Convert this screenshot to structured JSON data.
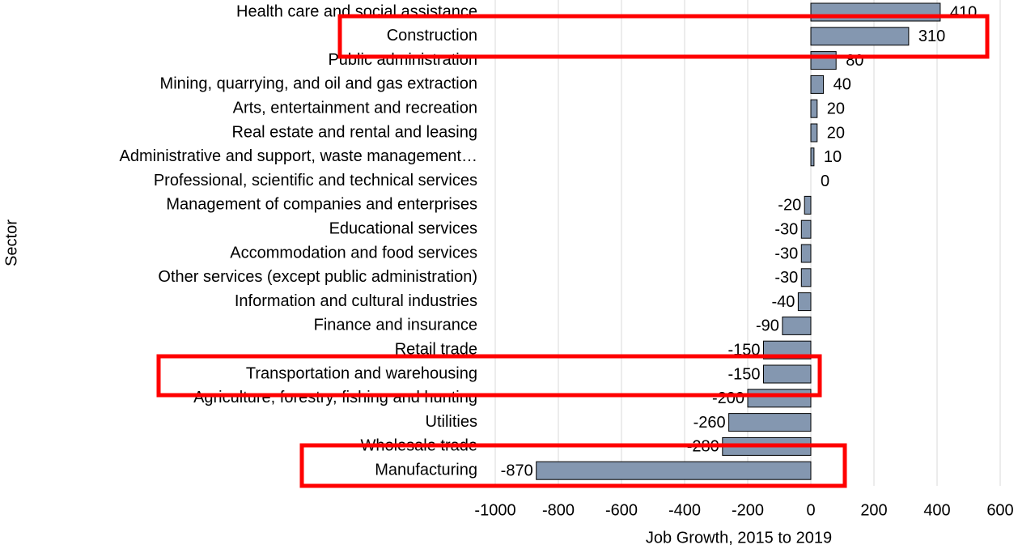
{
  "chart_data": {
    "type": "barh",
    "categories": [
      "Health care and social assistance",
      "Construction",
      "Public administration",
      "Mining, quarrying, and oil and gas extraction",
      "Arts, entertainment and recreation",
      "Real estate and rental and leasing",
      "Administrative and support, waste management…",
      "Professional, scientific and technical services",
      "Management of companies and enterprises",
      "Educational services",
      "Accommodation and food services",
      "Other services (except public administration)",
      "Information and cultural industries",
      "Finance and insurance",
      "Retail trade",
      "Transportation and warehousing",
      "Agriculture, forestry, fishing and hunting",
      "Utilities",
      "Wholesale trade",
      "Manufacturing"
    ],
    "values": [
      410,
      310,
      80,
      40,
      20,
      20,
      10,
      0,
      -20,
      -30,
      -30,
      -30,
      -40,
      -90,
      -150,
      -150,
      -200,
      -260,
      -280,
      -870
    ],
    "color": "#8497b0",
    "xlim": [
      -1000,
      600
    ],
    "xticks": [
      -1000,
      -800,
      -600,
      -400,
      -200,
      0,
      200,
      400,
      600
    ],
    "grid": true,
    "xlabel": "Job Growth, 2015 to 2019",
    "ylabel": "Sector"
  }
}
